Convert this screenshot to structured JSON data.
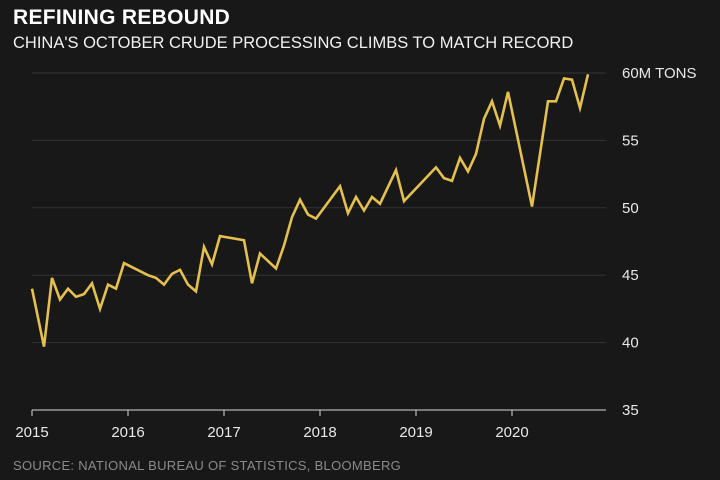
{
  "chart_data": {
    "type": "line",
    "title": "REFINING REBOUND",
    "subtitle": "CHINA'S OCTOBER CRUDE PROCESSING CLIMBS TO MATCH RECORD",
    "source": "SOURCE: NATIONAL BUREAU OF STATISTICS, BLOOMBERG",
    "xlabel": "",
    "ylabel": "",
    "y_unit_label": "60M TONS",
    "xlim": [
      2015,
      2020.92
    ],
    "ylim": [
      35,
      60
    ],
    "x_ticks": [
      2015,
      2016,
      2017,
      2018,
      2019,
      2020
    ],
    "x_tick_labels": [
      "2015",
      "2016",
      "2017",
      "2018",
      "2019",
      "2020"
    ],
    "y_ticks": [
      35,
      40,
      45,
      50,
      55,
      60
    ],
    "y_tick_labels": [
      "35",
      "40",
      "45",
      "50",
      "55",
      "60M TONS"
    ],
    "grid": true,
    "line_color": "#e3c04f",
    "series": [
      {
        "name": "Crude processing",
        "x": [
          2015.0,
          2015.125,
          2015.208,
          2015.292,
          2015.375,
          2015.458,
          2015.542,
          2015.625,
          2015.708,
          2015.792,
          2015.875,
          2015.958,
          2016.208,
          2016.292,
          2016.375,
          2016.458,
          2016.542,
          2016.625,
          2016.708,
          2016.792,
          2016.875,
          2016.958,
          2017.208,
          2017.292,
          2017.375,
          2017.542,
          2017.625,
          2017.708,
          2017.792,
          2017.875,
          2017.958,
          2018.208,
          2018.292,
          2018.375,
          2018.458,
          2018.542,
          2018.625,
          2018.792,
          2018.875,
          2019.208,
          2019.292,
          2019.375,
          2019.458,
          2019.542,
          2019.625,
          2019.708,
          2019.792,
          2019.875,
          2019.958,
          2020.208,
          2020.375,
          2020.458,
          2020.542,
          2020.625,
          2020.708,
          2020.792
        ],
        "values": [
          44.0,
          39.7,
          44.8,
          43.2,
          44.0,
          43.4,
          43.6,
          44.4,
          42.5,
          44.3,
          44.0,
          45.9,
          45.0,
          44.8,
          44.3,
          45.1,
          45.4,
          44.3,
          43.8,
          47.1,
          45.8,
          47.9,
          47.6,
          44.4,
          46.6,
          45.5,
          47.2,
          49.3,
          50.6,
          49.5,
          49.2,
          51.6,
          49.6,
          50.8,
          49.8,
          50.8,
          50.3,
          52.8,
          50.5,
          53.0,
          52.2,
          52.0,
          53.7,
          52.7,
          54.0,
          56.6,
          57.9,
          56.1,
          58.6,
          50.1,
          57.9,
          57.9,
          59.6,
          59.5,
          57.4,
          59.9
        ]
      }
    ]
  }
}
